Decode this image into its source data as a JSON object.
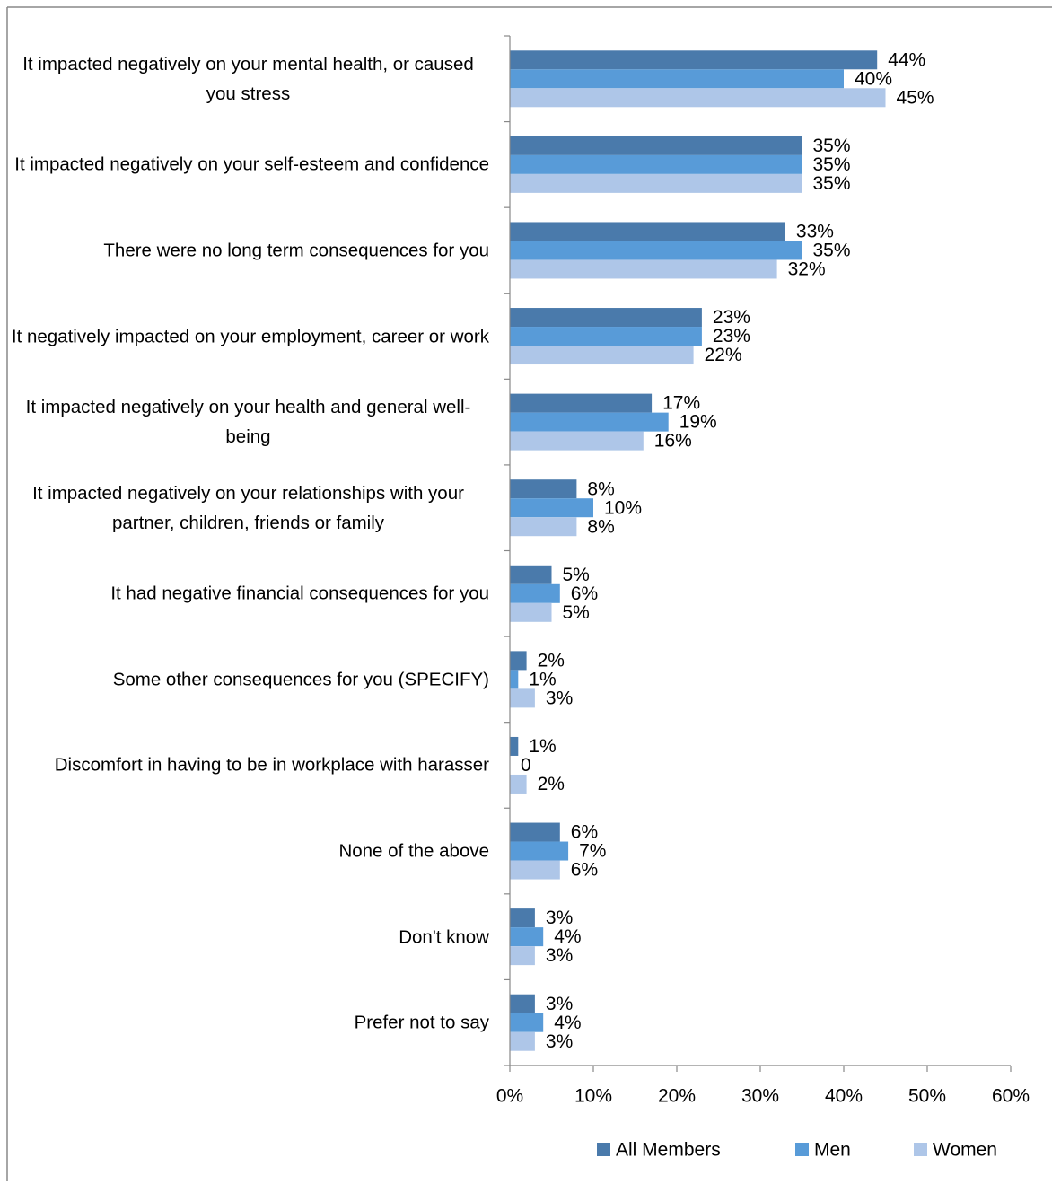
{
  "chart_data": {
    "type": "bar",
    "orientation": "horizontal",
    "categories": [
      "It impacted negatively on your mental health, or caused you stress",
      "It impacted negatively on your self-esteem and confidence",
      "There were no long term consequences for you",
      "It negatively impacted on your employment, career or work",
      "It impacted negatively on your health and general well-being",
      "It impacted negatively on your relationships with your partner, children, friends or family",
      "It had negative financial consequences for you",
      "Some other consequences for you (SPECIFY)",
      "Discomfort in having to be in workplace with harasser",
      "None of the above",
      "Don't know",
      "Prefer not to say"
    ],
    "series": [
      {
        "name": "All Members",
        "color": "#4a7aab",
        "values": [
          44,
          35,
          33,
          23,
          17,
          8,
          5,
          2,
          1,
          6,
          3,
          3
        ],
        "value_labels": [
          "44%",
          "35%",
          "33%",
          "23%",
          "17%",
          "8%",
          "5%",
          "2%",
          "1%",
          "6%",
          "3%",
          "3%"
        ]
      },
      {
        "name": "Men",
        "color": "#589bd8",
        "values": [
          40,
          35,
          35,
          23,
          19,
          10,
          6,
          1,
          0,
          7,
          4,
          4
        ],
        "value_labels": [
          "40%",
          "35%",
          "35%",
          "23%",
          "19%",
          "10%",
          "6%",
          "1%",
          "0",
          "7%",
          "4%",
          "4%"
        ]
      },
      {
        "name": "Women",
        "color": "#aec6e8",
        "values": [
          45,
          35,
          32,
          22,
          16,
          8,
          5,
          3,
          2,
          6,
          3,
          3
        ],
        "value_labels": [
          "45%",
          "35%",
          "32%",
          "22%",
          "16%",
          "8%",
          "5%",
          "3%",
          "2%",
          "6%",
          "3%",
          "3%"
        ]
      }
    ],
    "xlim": [
      0,
      60
    ],
    "xticks": [
      {
        "value": 0,
        "label": "0%"
      },
      {
        "value": 10,
        "label": "10%"
      },
      {
        "value": 20,
        "label": "20%"
      },
      {
        "value": 30,
        "label": "30%"
      },
      {
        "value": 40,
        "label": "40%"
      },
      {
        "value": 50,
        "label": "50%"
      },
      {
        "value": 60,
        "label": "60%"
      }
    ],
    "legend": "bottom-right"
  }
}
